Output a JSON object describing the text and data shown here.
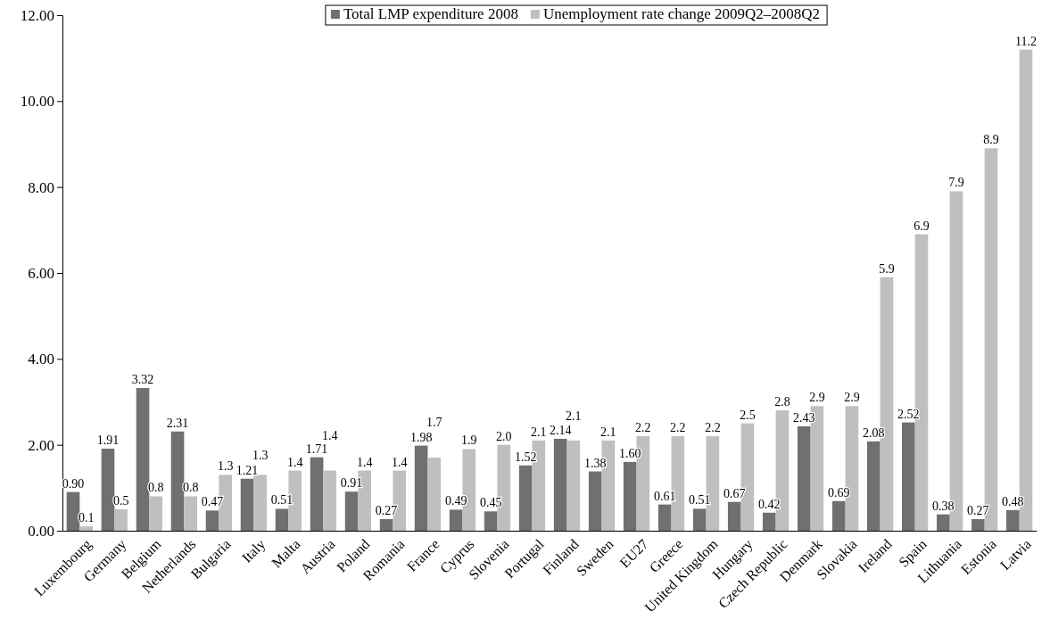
{
  "chart_data": {
    "type": "bar",
    "categories": [
      "Luxembourg",
      "Germany",
      "Belgium",
      "Netherlands",
      "Bulgaria",
      "Italy",
      "Malta",
      "Austria",
      "Poland",
      "Romania",
      "France",
      "Cyprus",
      "Slovenia",
      "Portugal",
      "Finland",
      "Sweden",
      "EU27",
      "Greece",
      "United Kingdom",
      "Hungary",
      "Czech Republic",
      "Denmark",
      "Slovakia",
      "Ireland",
      "Spain",
      "Lithuania",
      "Estonia",
      "Latvia"
    ],
    "series": [
      {
        "name": "Total LMP expenditure 2008",
        "color": "#707070",
        "values": [
          0.9,
          1.91,
          3.32,
          2.31,
          0.47,
          1.21,
          0.51,
          1.71,
          0.91,
          0.27,
          1.98,
          0.49,
          0.45,
          1.52,
          2.14,
          1.38,
          1.6,
          0.61,
          0.51,
          0.67,
          0.42,
          2.43,
          0.69,
          2.08,
          2.52,
          0.38,
          0.27,
          0.48
        ],
        "value_labels": [
          "0.90",
          "1.91",
          "3.32",
          "2.31",
          "0.47",
          "1.21",
          "0.51",
          "1.71",
          "0.91",
          "0.27",
          "1.98",
          "0.49",
          "0.45",
          "1.52",
          "2.14",
          "1.38",
          "1.60",
          "0.61",
          "0.51",
          "0.67",
          "0.42",
          "2.43",
          "0.69",
          "2.08",
          "2.52",
          "0.38",
          "0.27",
          "0.48"
        ]
      },
      {
        "name": "Unemployment rate change 2009Q2–2008Q2",
        "color": "#bfbfbf",
        "values": [
          0.1,
          0.5,
          0.8,
          0.8,
          1.3,
          1.3,
          1.4,
          1.4,
          1.4,
          1.4,
          1.7,
          1.9,
          2.0,
          2.1,
          2.1,
          2.1,
          2.2,
          2.2,
          2.2,
          2.5,
          2.8,
          2.9,
          2.9,
          5.9,
          6.9,
          7.9,
          8.9,
          11.2
        ],
        "value_labels": [
          "0.1",
          "0.5",
          "0.8",
          "0.8",
          "1.3",
          "1.3",
          "1.4",
          "1.4",
          "1.4",
          "1.4",
          "1.7",
          "1.9",
          "2.0",
          "2.1",
          "2.1",
          "2.1",
          "2.2",
          "2.2",
          "2.2",
          "2.5",
          "2.8",
          "2.9",
          "2.9",
          "5.9",
          "6.9",
          "7.9",
          "8.9",
          "11.2"
        ]
      }
    ],
    "ylim": [
      0,
      12
    ],
    "yticks": [
      {
        "value": 0,
        "label": "0.00"
      },
      {
        "value": 2,
        "label": "2.00"
      },
      {
        "value": 4,
        "label": "4.00"
      },
      {
        "value": 6,
        "label": "6.00"
      },
      {
        "value": 8,
        "label": "8.00"
      },
      {
        "value": 10,
        "label": "10.00"
      },
      {
        "value": 12,
        "label": "12.00"
      }
    ],
    "grid": false,
    "legend": "top"
  }
}
